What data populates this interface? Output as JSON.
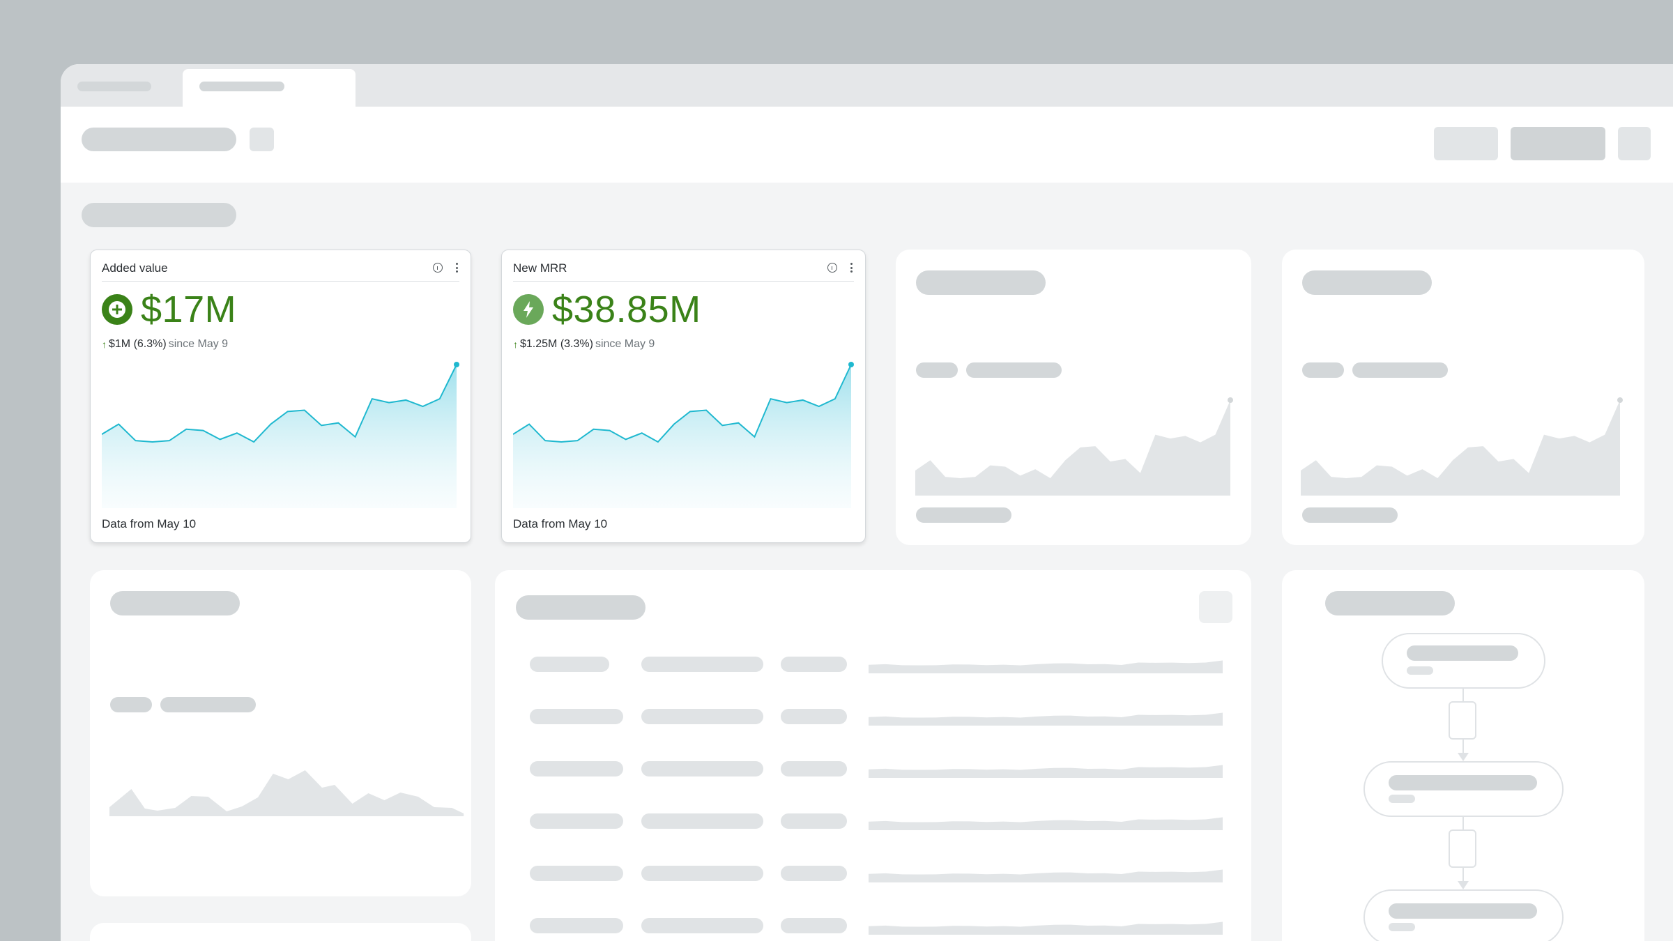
{
  "kpi_cards": [
    {
      "title": "Added value",
      "icon": "plus-circle-icon",
      "value": "$17M",
      "delta": "$1M (6.3%)",
      "since": "since May 9",
      "footer": "Data from May 10",
      "accent": "#3a8218"
    },
    {
      "title": "New MRR",
      "icon": "lightning-bolt-icon",
      "value": "$38.85M",
      "delta": "$1.25M (3.3%)",
      "since": "since May 9",
      "footer": "Data from May 10",
      "accent": "#3a8218"
    }
  ],
  "sparkline": {
    "series": [
      20,
      28,
      15,
      14,
      15,
      24,
      23,
      16,
      21,
      14,
      28,
      38,
      39,
      27,
      29,
      18,
      48,
      45,
      47,
      42,
      48,
      75
    ],
    "line_color": "#1fb8cf"
  },
  "colors": {
    "brand_green": "#3a8218",
    "placeholder": "#d3d7d9",
    "canvas": "#f3f4f5"
  }
}
